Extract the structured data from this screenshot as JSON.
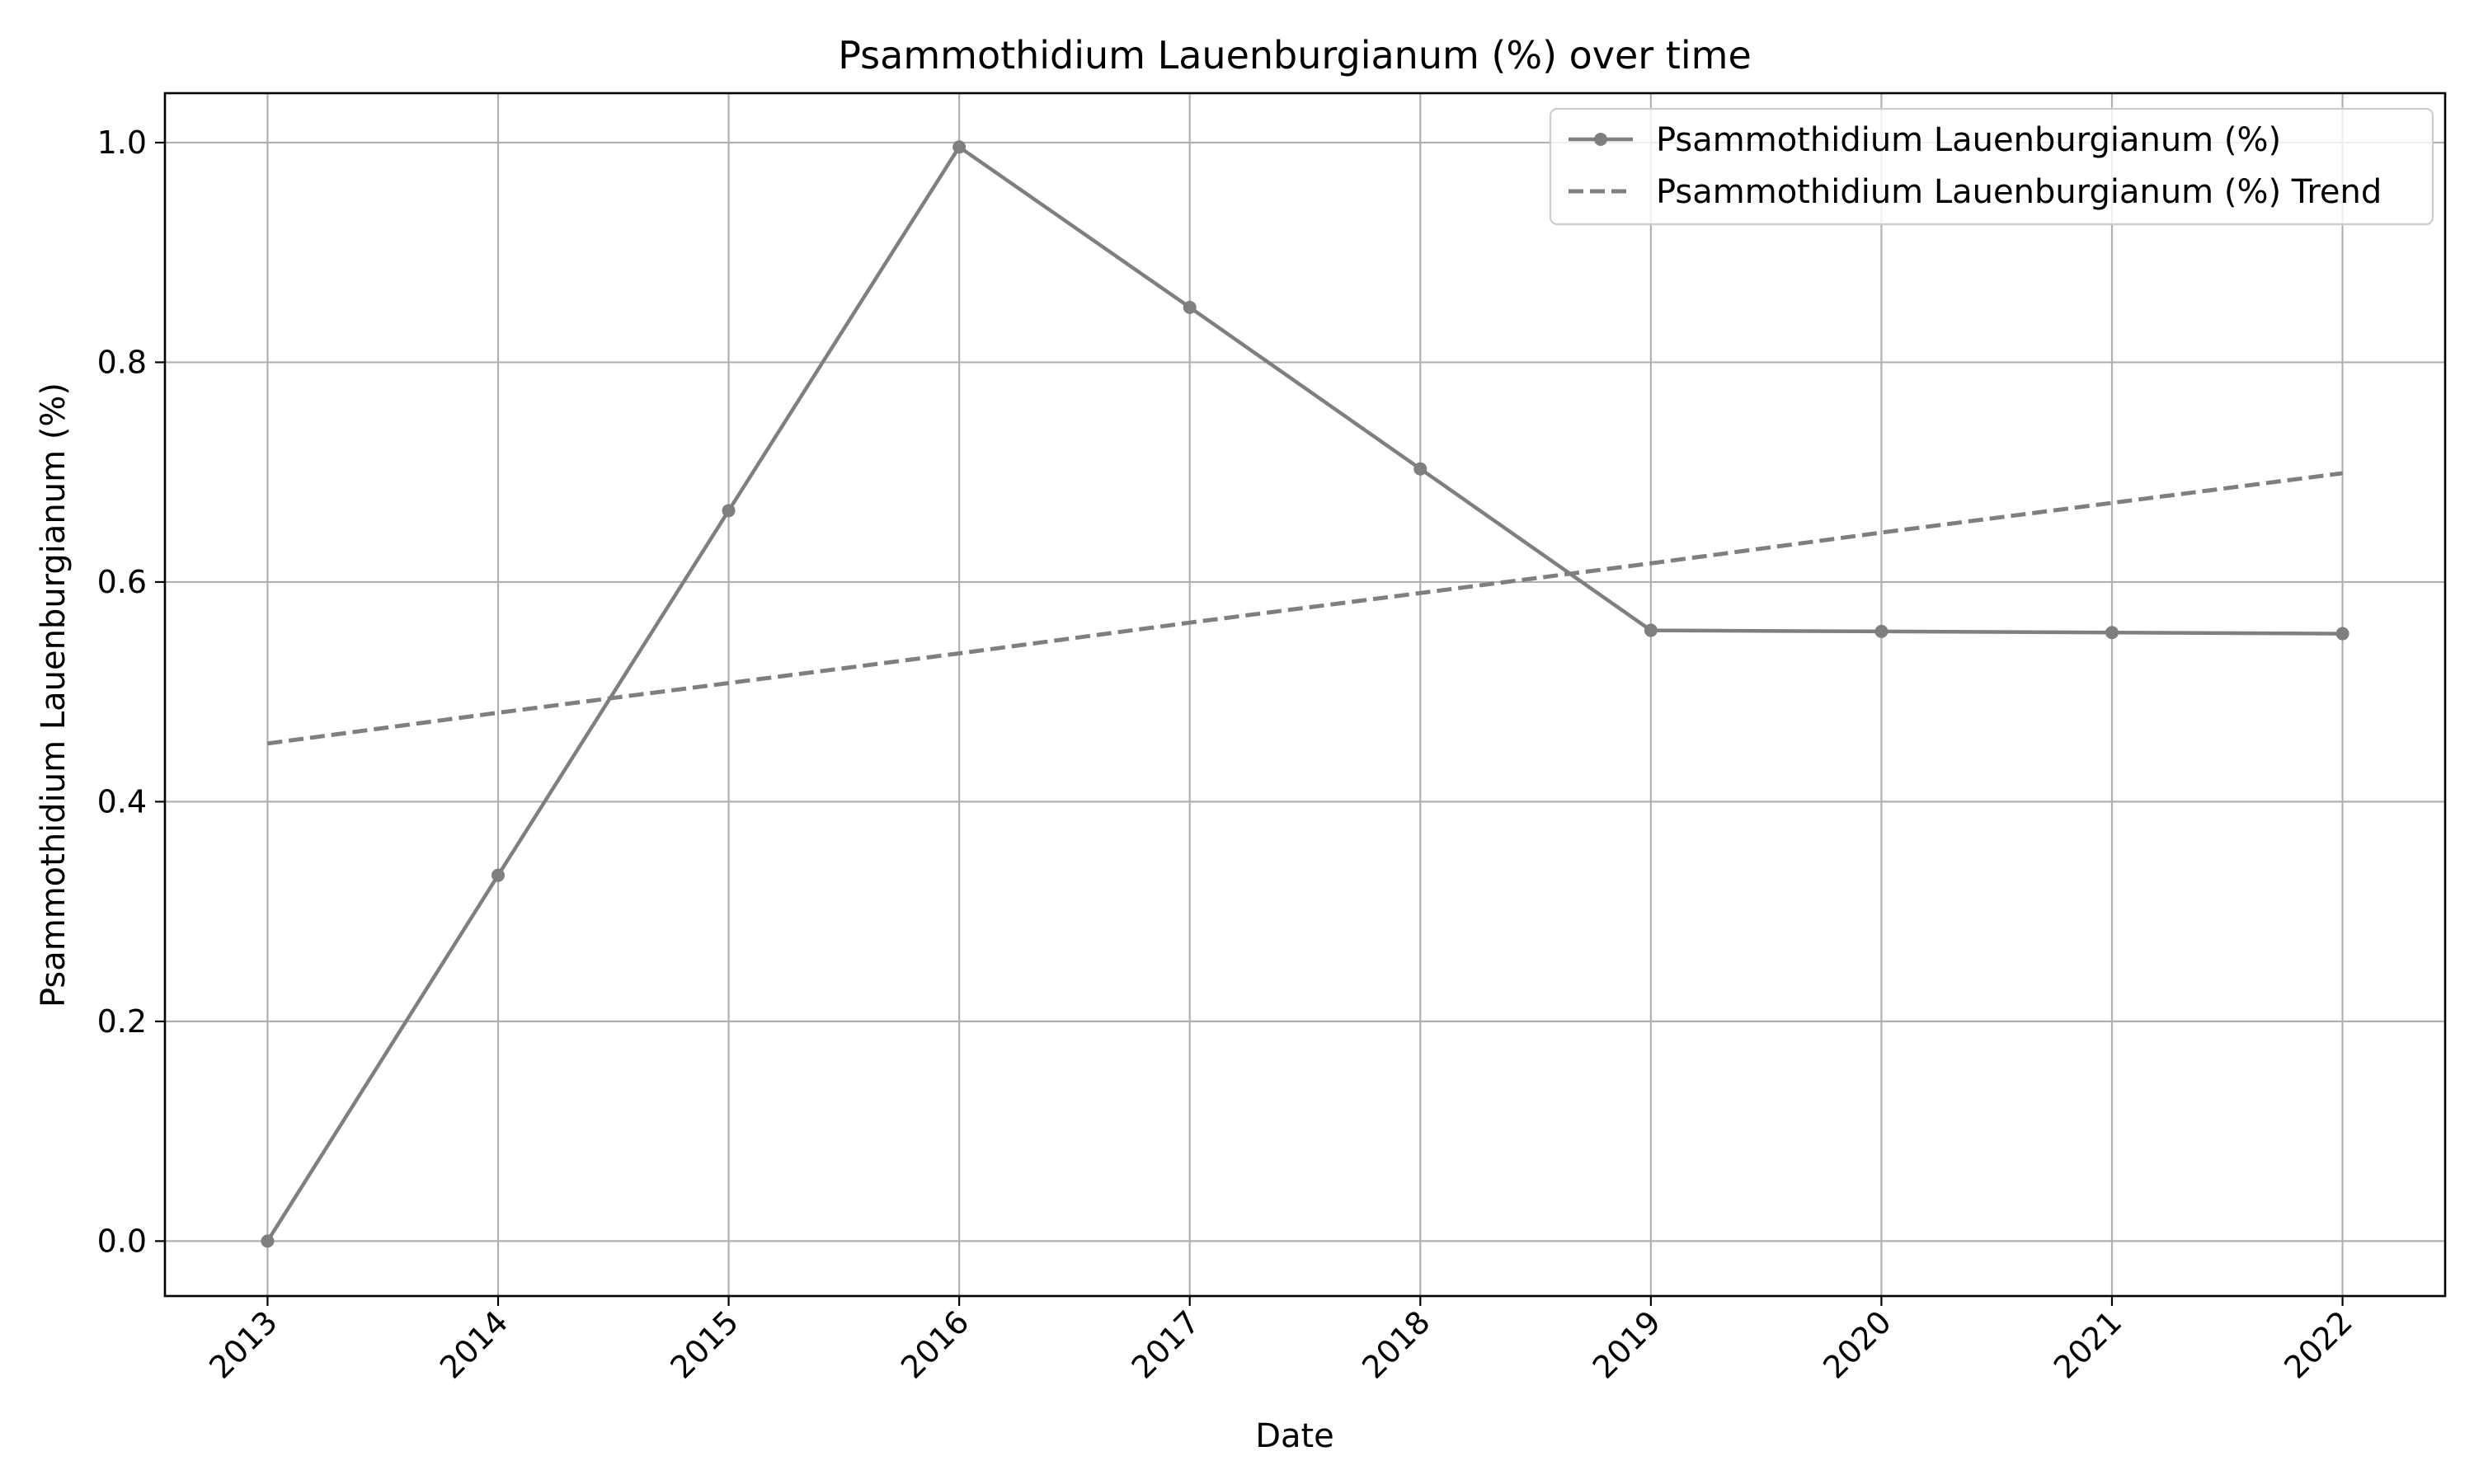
{
  "chart_data": {
    "type": "line",
    "title": "Psammothidium Lauenburgianum (%) over time",
    "xlabel": "Date",
    "ylabel": "Psammothidium Lauenburgianum (%)",
    "x": [
      "2013",
      "2014",
      "2015",
      "2016",
      "2017",
      "2018",
      "2019",
      "2020",
      "2021",
      "2022"
    ],
    "ylim": [
      -0.05,
      1.045
    ],
    "yticks": [
      0.0,
      0.2,
      0.4,
      0.6,
      0.8,
      1.0
    ],
    "ytick_labels": [
      "0.0",
      "0.2",
      "0.4",
      "0.6",
      "0.8",
      "1.0"
    ],
    "grid": true,
    "legend_position": "top-right",
    "series": [
      {
        "name": "Psammothidium Lauenburgianum (%)",
        "style": "solid-with-markers",
        "color": "#7f7f7f",
        "values": [
          0.0,
          0.333,
          0.665,
          0.996,
          0.85,
          0.703,
          0.556,
          0.555,
          0.554,
          0.553
        ]
      },
      {
        "name": "Psammothidium Lauenburgianum (%) Trend",
        "style": "dashed",
        "color": "#7f7f7f",
        "values": [
          0.453,
          0.481,
          0.508,
          0.535,
          0.563,
          0.59,
          0.617,
          0.645,
          0.672,
          0.699
        ]
      }
    ]
  }
}
